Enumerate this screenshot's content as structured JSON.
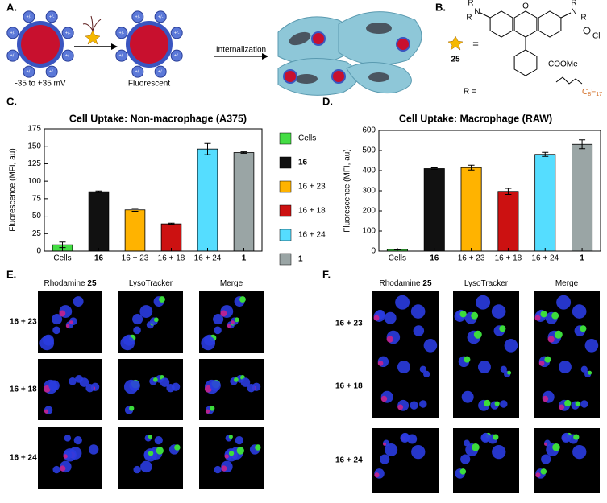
{
  "panels": {
    "a": "A.",
    "b": "B.",
    "c": "C.",
    "d": "D.",
    "e": "E.",
    "f": "F."
  },
  "diagram": {
    "charge": "+/-",
    "np_charge_range": "-35 to +35 mV",
    "fluorescent": "Fluorescent",
    "arrow": "Internalization",
    "compound": "25",
    "equals": "=",
    "n": "N",
    "r": "R",
    "o": "O",
    "chloride": "Cl",
    "ester": "COOMe",
    "r_def": "R =",
    "carbon": "C",
    "c_sub": "8",
    "fluorine": "F",
    "f_sub": "17"
  },
  "chart_data": [
    {
      "type": "bar",
      "title": "Cell Uptake: Non-macrophage (A375)",
      "y_label": "Fluorescence (MFI, au)",
      "categories": [
        "Cells",
        "16",
        "16 + 23",
        "16 + 18",
        "16 + 24",
        "1"
      ],
      "values": [
        9,
        85,
        59,
        39,
        146,
        141
      ],
      "errors": [
        4,
        1,
        2,
        1,
        8,
        1
      ],
      "colors": [
        "#44dd44",
        "#111111",
        "#ffb300",
        "#cc1111",
        "#55ddff",
        "#9aa5a5"
      ],
      "ylim": [
        0,
        175
      ],
      "yticks": [
        0,
        25,
        50,
        75,
        100,
        125,
        150,
        175
      ]
    },
    {
      "type": "bar",
      "title": "Cell Uptake: Macrophage (RAW)",
      "y_label": "Fluorescence (MFI, au)",
      "categories": [
        "Cells",
        "16",
        "16 + 23",
        "16 + 18",
        "16 + 24",
        "1"
      ],
      "values": [
        8,
        410,
        415,
        297,
        481,
        531
      ],
      "errors": [
        2,
        4,
        12,
        15,
        10,
        22
      ],
      "colors": [
        "#44dd44",
        "#111111",
        "#ffb300",
        "#cc1111",
        "#55ddff",
        "#9aa5a5"
      ],
      "ylim": [
        0,
        600
      ],
      "yticks": [
        0,
        100,
        200,
        300,
        400,
        500,
        600
      ]
    }
  ],
  "legend": [
    {
      "label": "Cells",
      "color": "#44dd44"
    },
    {
      "label": "16",
      "color": "#111111"
    },
    {
      "label": "16 + 23",
      "color": "#ffb300"
    },
    {
      "label": "16 + 18",
      "color": "#cc1111"
    },
    {
      "label": "16 + 24",
      "color": "#55ddff"
    },
    {
      "label": "1",
      "color": "#9aa5a5"
    }
  ],
  "microscopy": {
    "e": {
      "columns": [
        {
          "text": "Rhodamine",
          "bold": "25"
        },
        {
          "text": "LysoTracker"
        },
        {
          "text": "Merge"
        }
      ],
      "rows": [
        "16 + 23",
        "16 + 18",
        "16 + 24"
      ]
    },
    "f": {
      "columns": [
        {
          "text": "Rhodamine",
          "bold": "25"
        },
        {
          "text": "LysoTracker"
        },
        {
          "text": "Merge"
        }
      ],
      "rows": [
        "16 + 23",
        "16 + 18",
        "16 + 24"
      ]
    }
  }
}
